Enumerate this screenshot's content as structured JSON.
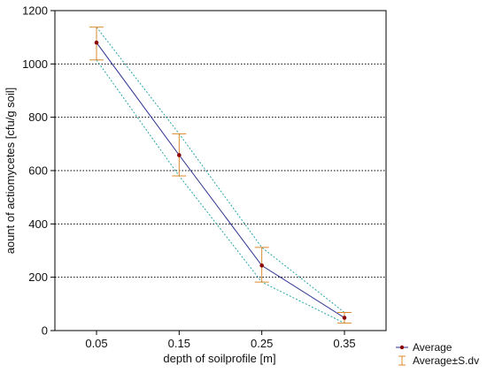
{
  "chart_data": {
    "type": "line",
    "title": "",
    "xlabel": "depth of soilprofile [m]",
    "ylabel": "aount of actiomycetes [cfu/g soil]",
    "categories": [
      "0.05",
      "0.15",
      "0.25",
      "0.35"
    ],
    "series": [
      {
        "name": "Average",
        "values": [
          1080,
          658,
          244,
          48
        ],
        "color": "#2b2f8f",
        "marker_color": "#8b0000"
      },
      {
        "name": "Average±S.dv",
        "lower": [
          1015,
          580,
          182,
          28
        ],
        "upper": [
          1138,
          738,
          312,
          68
        ],
        "color": "#d98a2b",
        "band_color": "#2aa6a6"
      }
    ],
    "ylim": [
      0,
      1200
    ],
    "yticks": [
      0,
      200,
      400,
      600,
      800,
      1000,
      1200
    ],
    "grid": "horizontal-dotted",
    "legend_position": "bottom-right"
  }
}
